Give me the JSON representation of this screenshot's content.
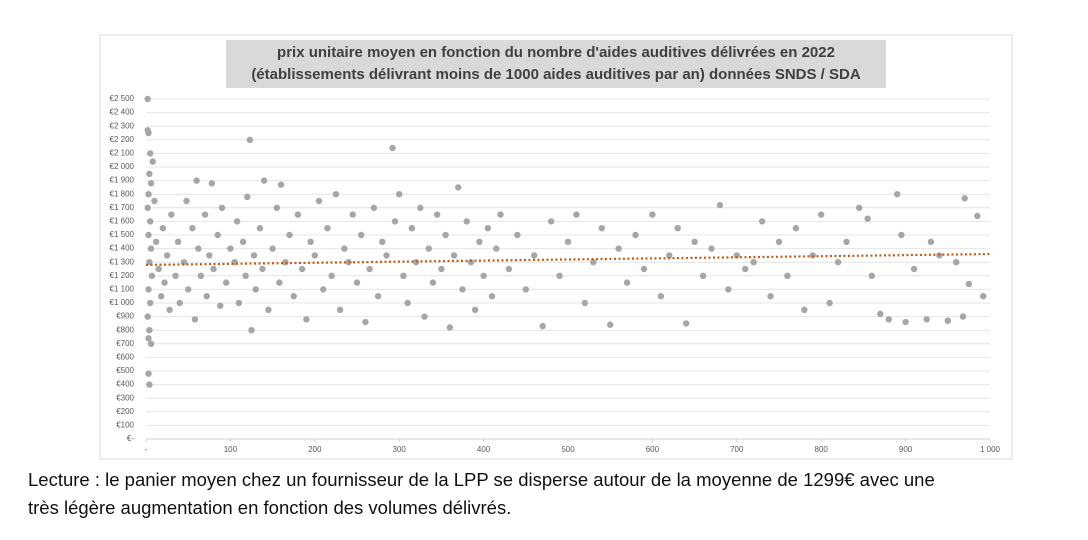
{
  "chart_data": {
    "type": "scatter",
    "title": [
      "prix unitaire moyen en fonction du nombre d'aides auditives délivrées en 2022",
      "(établissements délivrant moins de 1000 aides auditives par an) données SNDS / SDA"
    ],
    "color": "#a6a6a6",
    "xlim": [
      0,
      1000
    ],
    "xticks": [
      {
        "value": 0,
        "label": "-"
      },
      100,
      200,
      300,
      400,
      500,
      600,
      700,
      800,
      900,
      {
        "value": 1000,
        "label": "1 000"
      }
    ],
    "ylim": [
      0,
      2500
    ],
    "yticks": [
      {
        "value": 0,
        "label": "€-"
      },
      {
        "value": 100,
        "label": "€100"
      },
      {
        "value": 200,
        "label": "€200"
      },
      {
        "value": 300,
        "label": "€300"
      },
      {
        "value": 400,
        "label": "€400"
      },
      {
        "value": 500,
        "label": "€500"
      },
      {
        "value": 600,
        "label": "€600"
      },
      {
        "value": 700,
        "label": "€700"
      },
      {
        "value": 800,
        "label": "€800"
      },
      {
        "value": 900,
        "label": "€900"
      },
      {
        "value": 1000,
        "label": "€1 000"
      },
      {
        "value": 1100,
        "label": "€1 100"
      },
      {
        "value": 1200,
        "label": "€1 200"
      },
      {
        "value": 1300,
        "label": "€1 300"
      },
      {
        "value": 1400,
        "label": "€1 400"
      },
      {
        "value": 1500,
        "label": "€1 500"
      },
      {
        "value": 1600,
        "label": "€1 600"
      },
      {
        "value": 1700,
        "label": "€1 700"
      },
      {
        "value": 1800,
        "label": "€1 800"
      },
      {
        "value": 1900,
        "label": "€1 900"
      },
      {
        "value": 2000,
        "label": "€2 000"
      },
      {
        "value": 2100,
        "label": "€2 100"
      },
      {
        "value": 2200,
        "label": "€2 200"
      },
      {
        "value": 2300,
        "label": "€2 300"
      },
      {
        "value": 2400,
        "label": "€2 400"
      },
      {
        "value": 2500,
        "label": "€2 500"
      }
    ],
    "grid": true,
    "x": [
      2,
      2,
      3,
      5,
      8,
      4,
      6,
      3,
      2,
      5,
      3,
      6,
      4,
      7,
      3,
      5,
      2,
      4,
      3,
      6,
      3,
      4,
      10,
      12,
      15,
      18,
      20,
      22,
      25,
      28,
      30,
      35,
      38,
      40,
      45,
      48,
      50,
      55,
      58,
      60,
      62,
      65,
      70,
      72,
      75,
      78,
      80,
      85,
      88,
      90,
      95,
      100,
      105,
      108,
      110,
      115,
      118,
      120,
      123,
      125,
      128,
      130,
      135,
      138,
      140,
      145,
      150,
      155,
      158,
      160,
      165,
      170,
      175,
      180,
      185,
      190,
      195,
      200,
      205,
      210,
      215,
      220,
      225,
      230,
      235,
      240,
      245,
      250,
      255,
      260,
      265,
      270,
      275,
      280,
      285,
      292,
      295,
      300,
      305,
      310,
      315,
      320,
      325,
      330,
      335,
      340,
      345,
      350,
      355,
      360,
      365,
      370,
      375,
      380,
      385,
      390,
      395,
      400,
      405,
      410,
      415,
      420,
      430,
      440,
      450,
      460,
      470,
      480,
      490,
      500,
      510,
      520,
      530,
      540,
      550,
      560,
      570,
      580,
      590,
      600,
      610,
      620,
      630,
      640,
      650,
      660,
      670,
      680,
      690,
      700,
      710,
      720,
      730,
      740,
      750,
      760,
      770,
      780,
      790,
      800,
      810,
      820,
      830,
      845,
      855,
      860,
      870,
      880,
      890,
      895,
      900,
      910,
      925,
      930,
      940,
      950,
      960,
      968,
      970,
      975,
      985,
      992
    ],
    "values": [
      2500,
      2270,
      2250,
      2100,
      2040,
      1950,
      1880,
      1800,
      1700,
      1600,
      1500,
      1400,
      1300,
      1200,
      1100,
      1000,
      900,
      800,
      740,
      700,
      480,
      400,
      1750,
      1450,
      1250,
      1050,
      1550,
      1150,
      1350,
      950,
      1650,
      1200,
      1450,
      1000,
      1300,
      1750,
      1100,
      1550,
      880,
      1900,
      1400,
      1200,
      1650,
      1050,
      1350,
      1880,
      1250,
      1500,
      980,
      1700,
      1150,
      1400,
      1300,
      1600,
      1000,
      1450,
      1200,
      1780,
      2200,
      800,
      1350,
      1100,
      1550,
      1250,
      1900,
      950,
      1400,
      1700,
      1150,
      1870,
      1300,
      1500,
      1050,
      1650,
      1250,
      880,
      1450,
      1350,
      1750,
      1100,
      1550,
      1200,
      1800,
      950,
      1400,
      1300,
      1650,
      1150,
      1500,
      860,
      1250,
      1700,
      1050,
      1450,
      1350,
      2140,
      1600,
      1800,
      1200,
      1000,
      1550,
      1300,
      1700,
      900,
      1400,
      1150,
      1650,
      1250,
      1500,
      820,
      1350,
      1850,
      1100,
      1600,
      1300,
      950,
      1450,
      1200,
      1550,
      1050,
      1400,
      1650,
      1250,
      1500,
      1100,
      1350,
      830,
      1600,
      1200,
      1450,
      1650,
      1000,
      1300,
      1550,
      840,
      1400,
      1150,
      1500,
      1250,
      1650,
      1050,
      1350,
      1550,
      850,
      1450,
      1200,
      1400,
      1720,
      1100,
      1350,
      1250,
      1300,
      1600,
      1050,
      1450,
      1200,
      1550,
      950,
      1350,
      1650,
      1000,
      1300,
      1450,
      1700,
      1620,
      1200,
      920,
      880,
      1800,
      1500,
      860,
      1250,
      880,
      1450,
      1350,
      870,
      1300,
      900,
      1770,
      1140,
      1640,
      1050
    ],
    "trendline": {
      "x": [
        0,
        1000
      ],
      "values": [
        1280,
        1360
      ],
      "color": "#c55a11"
    }
  },
  "caption": [
    "Lecture : le panier moyen chez un fournisseur de la LPP se disperse autour de la moyenne de 1299€ avec une",
    "très légère augmentation en fonction des volumes délivrés."
  ]
}
